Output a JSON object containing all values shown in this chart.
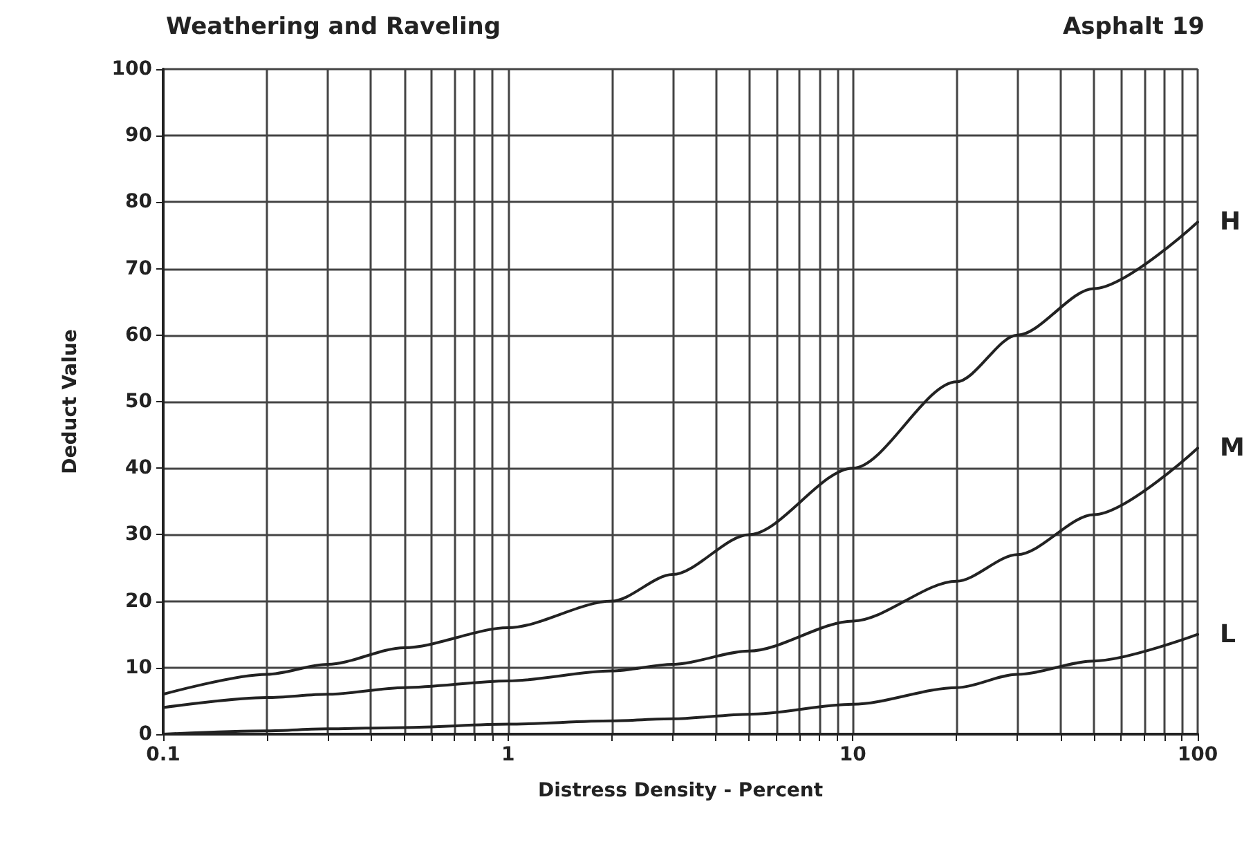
{
  "chart_data": {
    "type": "line",
    "title": "Weathering and Raveling",
    "subtitle": "Asphalt 19",
    "xlabel": "Distress Density - Percent",
    "ylabel": "Deduct Value",
    "x": [
      0.1,
      0.2,
      0.3,
      0.5,
      1,
      2,
      3,
      5,
      10,
      20,
      30,
      50,
      100
    ],
    "series": [
      {
        "name": "H",
        "color": "#222222",
        "values": [
          6,
          9,
          10.5,
          13,
          16,
          20,
          24,
          30,
          40,
          53,
          60,
          67,
          77
        ]
      },
      {
        "name": "M",
        "color": "#222222",
        "values": [
          4,
          5.5,
          6,
          7,
          8,
          9.5,
          10.5,
          12.5,
          17,
          23,
          27,
          33,
          43
        ]
      },
      {
        "name": "L",
        "color": "#222222",
        "values": [
          0,
          0.5,
          0.8,
          1,
          1.5,
          2,
          2.3,
          3,
          4.5,
          7,
          9,
          11,
          15
        ]
      }
    ],
    "log": "x",
    "xlim": [
      0.1,
      100
    ],
    "ylim": [
      0,
      100
    ],
    "xticks": [
      0.1,
      {
        "value": 0.2,
        "label": null
      },
      {
        "value": 0.3,
        "label": null
      },
      {
        "value": 0.4,
        "label": null
      },
      {
        "value": 0.5,
        "label": null
      },
      {
        "value": 0.6,
        "label": null
      },
      {
        "value": 0.7,
        "label": null
      },
      {
        "value": 0.8,
        "label": null
      },
      {
        "value": 0.9,
        "label": null
      },
      1,
      {
        "value": 2,
        "label": null
      },
      {
        "value": 3,
        "label": null
      },
      {
        "value": 4,
        "label": null
      },
      {
        "value": 5,
        "label": null
      },
      {
        "value": 6,
        "label": null
      },
      {
        "value": 7,
        "label": null
      },
      {
        "value": 8,
        "label": null
      },
      {
        "value": 9,
        "label": null
      },
      10,
      {
        "value": 20,
        "label": null
      },
      {
        "value": 30,
        "label": null
      },
      {
        "value": 40,
        "label": null
      },
      {
        "value": 50,
        "label": null
      },
      {
        "value": 60,
        "label": null
      },
      {
        "value": 70,
        "label": null
      },
      {
        "value": 80,
        "label": null
      },
      {
        "value": 90,
        "label": null
      },
      100
    ],
    "yticks": [
      0,
      10,
      20,
      30,
      40,
      50,
      60,
      70,
      80,
      90,
      100
    ],
    "grid": true,
    "marker": "none",
    "line_style": "solid",
    "legend": false
  }
}
